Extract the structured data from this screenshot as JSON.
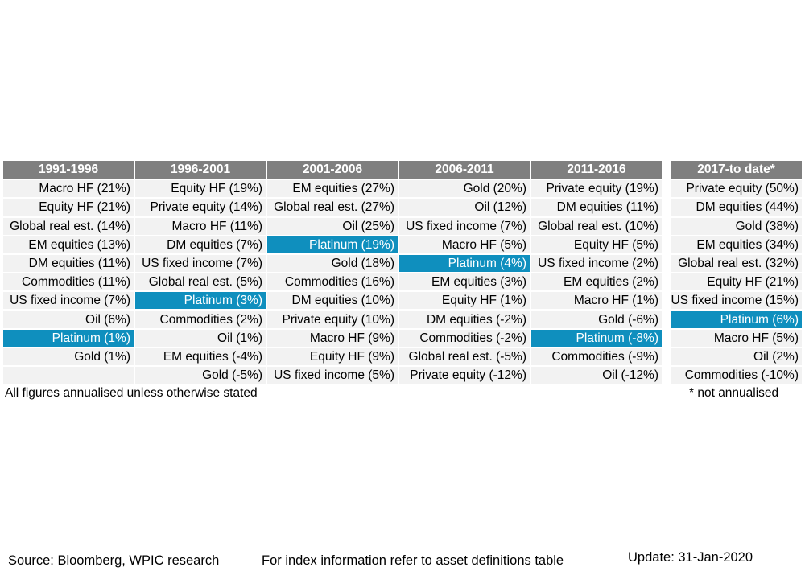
{
  "chart_data": {
    "type": "table",
    "highlight_item": "Platinum",
    "highlight_color": "#0f8fbe",
    "header_color": "#7f7f7f",
    "columns": [
      {
        "header": "1991-1996",
        "cells": [
          "Macro HF (21%)",
          "Equity HF (21%)",
          "Global real est. (14%)",
          "EM equities (13%)",
          "DM equities (11%)",
          "Commodities (11%)",
          "US fixed income (7%)",
          "Oil (6%)",
          "Platinum (1%)",
          "Gold (1%)",
          ""
        ]
      },
      {
        "header": "1996-2001",
        "cells": [
          "Equity HF (19%)",
          "Private equity (14%)",
          "Macro HF (11%)",
          "DM equities (7%)",
          "US fixed income (7%)",
          "Global real est. (5%)",
          "Platinum (3%)",
          "Commodities (2%)",
          "Oil (1%)",
          "EM equities (-4%)",
          "Gold (-5%)"
        ]
      },
      {
        "header": "2001-2006",
        "cells": [
          "EM equities (27%)",
          "Global real est. (27%)",
          "Oil (25%)",
          "Platinum (19%)",
          "Gold (18%)",
          "Commodities (16%)",
          "DM equities (10%)",
          "Private equity (10%)",
          "Macro HF (9%)",
          "Equity HF (9%)",
          "US fixed income (5%)"
        ]
      },
      {
        "header": "2006-2011",
        "cells": [
          "Gold (20%)",
          "Oil (12%)",
          "US fixed income (7%)",
          "Macro HF (5%)",
          "Platinum (4%)",
          "EM equities (3%)",
          "Equity HF (1%)",
          "DM equities (-2%)",
          "Commodities (-2%)",
          "Global real est. (-5%)",
          "Private equity (-12%)"
        ]
      },
      {
        "header": "2011-2016",
        "cells": [
          "Private equity (19%)",
          "DM equities (11%)",
          "Global real est. (10%)",
          "Equity HF (5%)",
          "US fixed income (2%)",
          "EM equities (2%)",
          "Macro HF (1%)",
          "Gold (-6%)",
          "Platinum (-8%)",
          "Commodities (-9%)",
          "Oil (-12%)"
        ]
      },
      {
        "header": "2017-to date*",
        "cells": [
          "Private equity (50%)",
          "DM equities (44%)",
          "Gold (38%)",
          "EM equities (34%)",
          "Global real est. (32%)",
          "Equity HF (21%)",
          "US fixed income (15%)",
          "Platinum (6%)",
          "Macro HF (5%)",
          "Oil (2%)",
          "Commodities (-10%)"
        ]
      }
    ]
  },
  "notes": {
    "annualised": "All figures annualised unless otherwise stated",
    "not_annualised": "* not annualised",
    "source": "Source: Bloomberg, WPIC research",
    "index_info": "For index information refer to asset definitions table",
    "update": "Update: 31-Jan-2020"
  }
}
